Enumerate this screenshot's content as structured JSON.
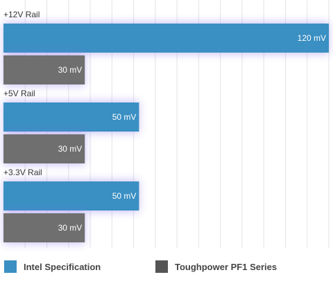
{
  "chart_data": {
    "type": "bar",
    "orientation": "horizontal",
    "categories": [
      "+12V Rail",
      "+5V Rail",
      "+3.3V Rail"
    ],
    "series": [
      {
        "name": "Intel Specification",
        "values": [
          120,
          50,
          50
        ],
        "labels": [
          "120 mV",
          "50 mV",
          "50 mV"
        ],
        "color": "#3a8fc3"
      },
      {
        "name": "Toughpower PF1 Series",
        "values": [
          30,
          30,
          30
        ],
        "labels": [
          "30 mV",
          "30 mV",
          "30 mV"
        ],
        "color": "#6f6f6f"
      }
    ],
    "xlim": [
      0,
      120
    ],
    "grid": true,
    "legend_position": "bottom"
  },
  "legend": {
    "items": [
      {
        "label": "Intel Specification",
        "color": "#3a8fc3"
      },
      {
        "label": "Toughpower PF1 Series",
        "color": "#555555"
      }
    ]
  }
}
